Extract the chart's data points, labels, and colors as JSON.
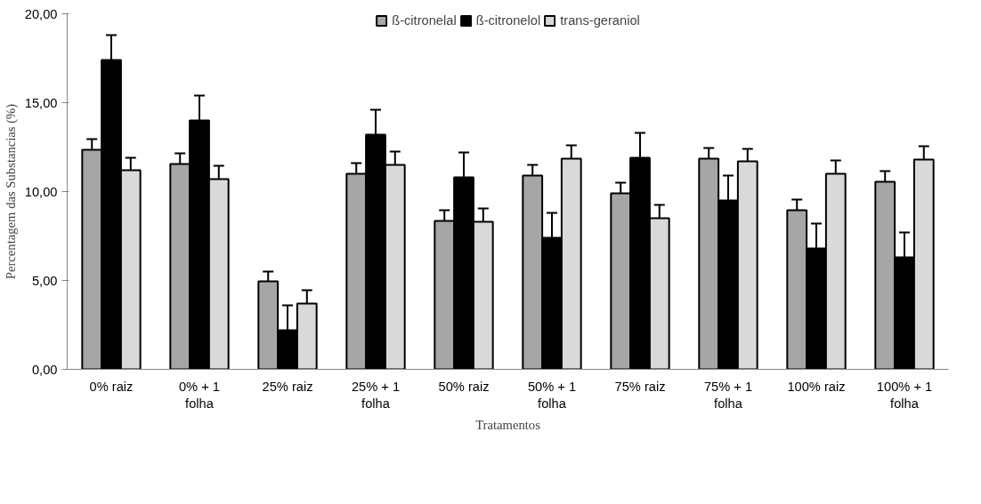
{
  "chart_data": {
    "type": "bar",
    "xlabel": "Tratamentos",
    "ylabel": "Percentagem das Substancias (%)",
    "categories": [
      "0% raiz",
      "0% + 1\nfolha",
      "25% raiz",
      "25% + 1\nfolha",
      "50% raiz",
      "50% + 1\nfolha",
      "75% raiz",
      "75% + 1\nfolha",
      "100% raiz",
      "100% + 1\nfolha"
    ],
    "series": [
      {
        "name": "ß-citronelal",
        "color": "#a6a6a6",
        "values": [
          12.35,
          11.55,
          4.95,
          11.0,
          8.35,
          10.9,
          9.9,
          11.85,
          8.95,
          10.55
        ],
        "errors": [
          0.6,
          0.6,
          0.55,
          0.6,
          0.6,
          0.6,
          0.6,
          0.6,
          0.6,
          0.6
        ]
      },
      {
        "name": "ß-citronelol",
        "color": "#000000",
        "values": [
          17.4,
          14.0,
          2.2,
          13.2,
          10.8,
          7.4,
          11.9,
          9.5,
          6.8,
          6.3
        ],
        "errors": [
          1.4,
          1.4,
          1.4,
          1.4,
          1.4,
          1.4,
          1.4,
          1.4,
          1.4,
          1.4
        ]
      },
      {
        "name": "trans-geraniol",
        "color": "#d9d9d9",
        "values": [
          11.2,
          10.7,
          3.7,
          11.5,
          8.3,
          11.85,
          8.5,
          11.7,
          11.0,
          11.8
        ],
        "errors": [
          0.7,
          0.75,
          0.75,
          0.75,
          0.75,
          0.75,
          0.75,
          0.7,
          0.75,
          0.75
        ]
      }
    ],
    "ylim": [
      0,
      20
    ],
    "yticks": [
      {
        "value": 0,
        "label": "0,00"
      },
      {
        "value": 5,
        "label": "5,00"
      },
      {
        "value": 10,
        "label": "10,00"
      },
      {
        "value": 15,
        "label": "15,00"
      },
      {
        "value": 20,
        "label": "20,00"
      }
    ],
    "grid": false,
    "legend": "top"
  }
}
